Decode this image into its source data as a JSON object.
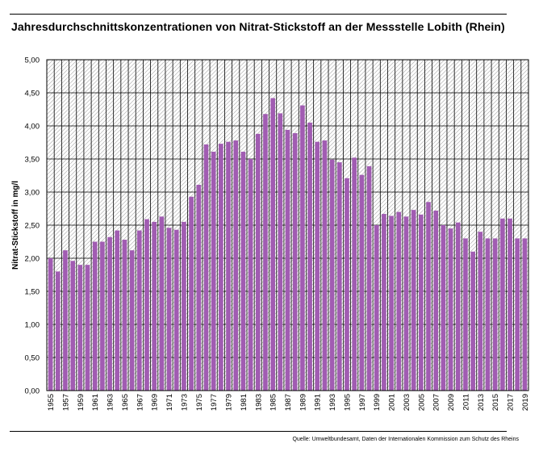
{
  "title": "Jahresdurchschnittskonzentrationen von Nitrat-Stickstoff an der Messstelle Lobith (Rhein)",
  "source": "Quelle: Umweltbundesamt, Daten der Internationalen Kommission zum Schutz des Rheins",
  "colors": {
    "bar": "#a15cb2",
    "grid": "#000000",
    "hatch": "#b3b3b3"
  },
  "chart_data": {
    "type": "bar",
    "title": "Jahresdurchschnittskonzentrationen von Nitrat-Stickstoff an der Messstelle Lobith (Rhein)",
    "xlabel": "",
    "ylabel": "Nitrat-Stickstoff in mg/l",
    "ylim": [
      0,
      5
    ],
    "yticks": [
      "0,00",
      "0,50",
      "1,00",
      "1,50",
      "2,00",
      "2,50",
      "3,00",
      "3,50",
      "4,00",
      "4,50",
      "5,00"
    ],
    "x_tick_labels": [
      "1955",
      "1957",
      "1959",
      "1961",
      "1963",
      "1965",
      "1967",
      "1969",
      "1971",
      "1973",
      "1975",
      "1977",
      "1979",
      "1981",
      "1983",
      "1985",
      "1987",
      "1989",
      "1991",
      "1993",
      "1995",
      "1997",
      "1999",
      "2001",
      "2003",
      "2005",
      "2007",
      "2009",
      "2011",
      "2013",
      "2015",
      "2017",
      "2019"
    ],
    "grid": true,
    "background": "hatched",
    "categories": [
      1955,
      1956,
      1957,
      1958,
      1959,
      1960,
      1961,
      1962,
      1963,
      1964,
      1965,
      1966,
      1967,
      1968,
      1969,
      1970,
      1971,
      1972,
      1973,
      1974,
      1975,
      1976,
      1977,
      1978,
      1979,
      1980,
      1981,
      1982,
      1983,
      1984,
      1985,
      1986,
      1987,
      1988,
      1989,
      1990,
      1991,
      1992,
      1993,
      1994,
      1995,
      1996,
      1997,
      1998,
      1999,
      2000,
      2001,
      2002,
      2003,
      2004,
      2005,
      2006,
      2007,
      2008,
      2009,
      2010,
      2011,
      2012,
      2013,
      2014,
      2015,
      2016,
      2017,
      2018,
      2019
    ],
    "values": [
      2.0,
      1.8,
      2.12,
      1.96,
      1.9,
      1.9,
      2.25,
      2.25,
      2.32,
      2.42,
      2.28,
      2.12,
      2.42,
      2.59,
      2.55,
      2.63,
      2.46,
      2.43,
      2.55,
      2.93,
      3.11,
      3.72,
      3.61,
      3.73,
      3.76,
      3.78,
      3.61,
      3.5,
      3.88,
      4.18,
      4.42,
      4.19,
      3.94,
      3.89,
      4.31,
      4.05,
      3.76,
      3.78,
      3.49,
      3.45,
      3.21,
      3.52,
      3.26,
      3.39,
      2.5,
      2.67,
      2.64,
      2.7,
      2.63,
      2.73,
      2.66,
      2.85,
      2.72,
      2.5,
      2.45,
      2.54,
      2.3,
      2.1,
      2.4,
      2.3,
      2.3,
      2.6,
      2.6,
      2.3,
      2.3
    ]
  }
}
